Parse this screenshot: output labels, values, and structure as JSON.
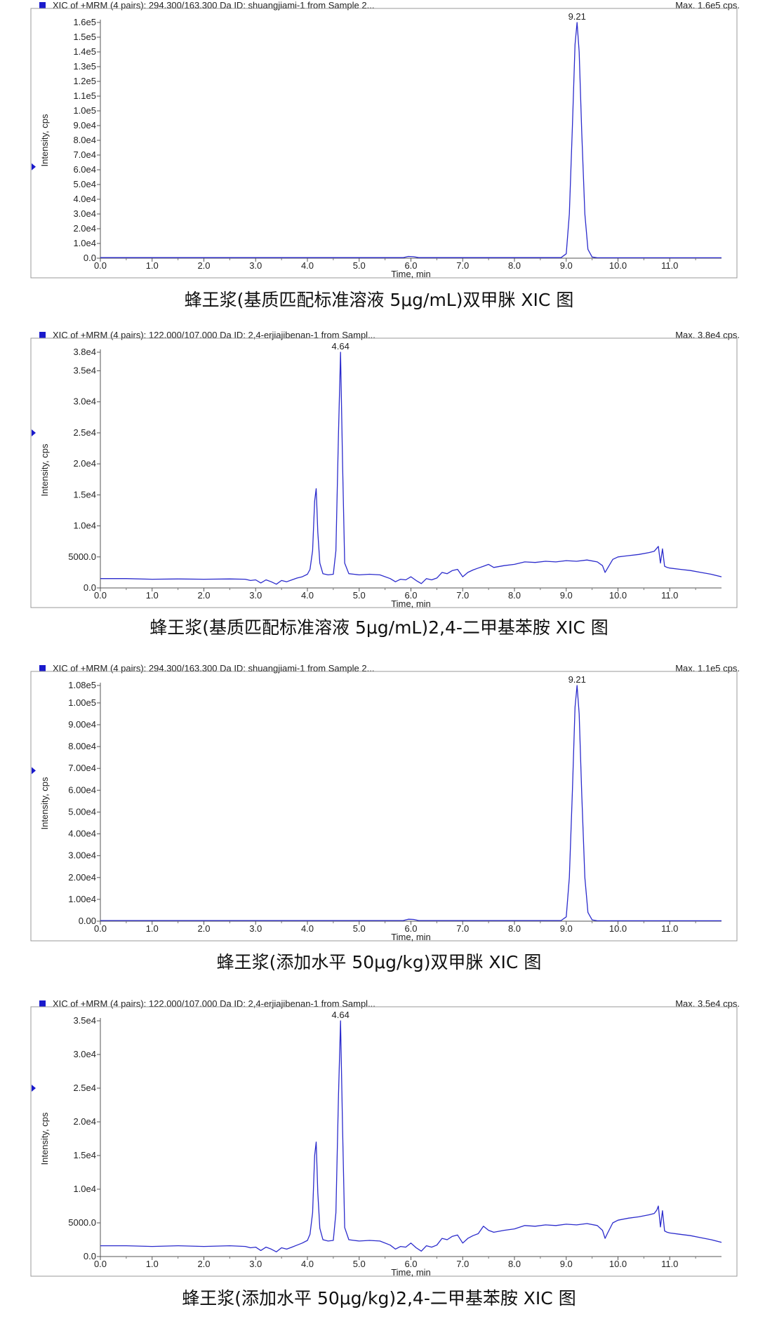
{
  "chart_data": [
    {
      "type": "line",
      "header_left": "XIC of +MRM (4 pairs): 294.300/163.300 Da ID: shuangjiami-1 from Sample 2...",
      "header_right": "Max. 1.6e5 cps.",
      "caption": "蜂王浆(基质匹配标准溶液 5μg/mL)双甲脒 XIC 图",
      "xlabel": "Time, min",
      "ylabel": "Intensity, cps",
      "xlim": [
        0,
        12
      ],
      "ylim": [
        0,
        160000
      ],
      "x_ticks": [
        "0.0",
        "1.0",
        "2.0",
        "3.0",
        "4.0",
        "5.0",
        "6.0",
        "7.0",
        "8.0",
        "9.0",
        "10.0",
        "11.0"
      ],
      "y_ticks": [
        "0.0",
        "1.0e4",
        "2.0e4",
        "3.0e4",
        "4.0e4",
        "5.0e4",
        "6.0e4",
        "7.0e4",
        "8.0e4",
        "9.0e4",
        "1.0e5",
        "1.1e5",
        "1.2e5",
        "1.3e5",
        "1.4e5",
        "1.5e5",
        "1.6e5"
      ],
      "y_tick_values": [
        0,
        10000,
        20000,
        30000,
        40000,
        50000,
        60000,
        70000,
        80000,
        90000,
        100000,
        110000,
        120000,
        130000,
        140000,
        150000,
        160000
      ],
      "marker_y": 62000,
      "peak_labels": [
        {
          "x": 9.21,
          "y": 160000,
          "label": "9.21"
        }
      ],
      "series": [
        {
          "color": "#2b2bcc",
          "x": [
            0.0,
            5.85,
            5.95,
            6.05,
            6.15,
            8.9,
            9.0,
            9.06,
            9.12,
            9.17,
            9.21,
            9.25,
            9.3,
            9.36,
            9.42,
            9.5,
            9.6,
            12.0
          ],
          "y": [
            400,
            400,
            1200,
            1000,
            400,
            400,
            3000,
            30000,
            90000,
            145000,
            160000,
            140000,
            85000,
            30000,
            6000,
            800,
            300,
            300
          ]
        }
      ]
    },
    {
      "type": "line",
      "header_left": "XIC of +MRM (4 pairs): 122.000/107.000 Da ID: 2,4-erjiajibenan-1 from Sampl...",
      "header_right": "Max. 3.8e4 cps.",
      "caption": "蜂王浆(基质匹配标准溶液 5μg/mL)2,4-二甲基苯胺 XIC 图",
      "xlabel": "Time, min",
      "ylabel": "Intensity, cps",
      "xlim": [
        0,
        12
      ],
      "ylim": [
        0,
        38000
      ],
      "x_ticks": [
        "0.0",
        "1.0",
        "2.0",
        "3.0",
        "4.0",
        "5.0",
        "6.0",
        "7.0",
        "8.0",
        "9.0",
        "10.0",
        "11.0"
      ],
      "y_ticks": [
        "0.0",
        "5000.0",
        "1.0e4",
        "1.5e4",
        "2.0e4",
        "2.5e4",
        "3.0e4",
        "3.5e4",
        "3.8e4"
      ],
      "y_tick_values": [
        0,
        5000,
        10000,
        15000,
        20000,
        25000,
        30000,
        35000,
        38000
      ],
      "marker_y": 25000,
      "peak_labels": [
        {
          "x": 4.64,
          "y": 38000,
          "label": "4.64"
        }
      ],
      "series": [
        {
          "color": "#2b2bcc",
          "x": [
            0.0,
            0.5,
            1.0,
            1.5,
            2.0,
            2.5,
            2.8,
            2.9,
            3.0,
            3.1,
            3.2,
            3.3,
            3.4,
            3.5,
            3.6,
            3.7,
            3.8,
            3.9,
            4.0,
            4.05,
            4.1,
            4.14,
            4.17,
            4.2,
            4.24,
            4.3,
            4.4,
            4.5,
            4.55,
            4.6,
            4.64,
            4.68,
            4.72,
            4.8,
            4.9,
            5.0,
            5.2,
            5.4,
            5.6,
            5.7,
            5.8,
            5.9,
            6.0,
            6.1,
            6.2,
            6.3,
            6.4,
            6.5,
            6.6,
            6.7,
            6.8,
            6.9,
            7.0,
            7.1,
            7.2,
            7.3,
            7.4,
            7.5,
            7.6,
            7.8,
            8.0,
            8.2,
            8.4,
            8.6,
            8.8,
            9.0,
            9.2,
            9.4,
            9.6,
            9.7,
            9.75,
            9.8,
            9.9,
            10.0,
            10.2,
            10.4,
            10.6,
            10.7,
            10.75,
            10.78,
            10.82,
            10.86,
            10.9,
            10.95,
            11.0,
            11.2,
            11.4,
            11.6,
            11.8,
            12.0
          ],
          "y": [
            1500,
            1500,
            1400,
            1450,
            1400,
            1450,
            1400,
            1200,
            1300,
            800,
            1300,
            1000,
            600,
            1200,
            1000,
            1300,
            1600,
            1800,
            2200,
            3000,
            6000,
            14000,
            16000,
            9000,
            4000,
            2300,
            2100,
            2200,
            6000,
            25000,
            38000,
            20000,
            4000,
            2300,
            2200,
            2100,
            2200,
            2100,
            1500,
            1000,
            1400,
            1300,
            1800,
            1200,
            700,
            1500,
            1300,
            1600,
            2500,
            2300,
            2800,
            3000,
            1800,
            2500,
            2900,
            3200,
            3500,
            3800,
            3300,
            3600,
            3800,
            4200,
            4100,
            4300,
            4200,
            4400,
            4300,
            4500,
            4200,
            3600,
            2500,
            3200,
            4600,
            5000,
            5200,
            5400,
            5700,
            5900,
            6400,
            6700,
            4000,
            6300,
            3500,
            3300,
            3200,
            3000,
            2800,
            2500,
            2200,
            1800
          ]
        }
      ]
    },
    {
      "type": "line",
      "header_left": "XIC of +MRM (4 pairs): 294.300/163.300 Da ID: shuangjiami-1 from Sample 2...",
      "header_right": "Max. 1.1e5 cps.",
      "caption": "蜂王浆(添加水平 50μg/kg)双甲脒 XIC 图",
      "xlabel": "Time, min",
      "ylabel": "Intensity, cps",
      "xlim": [
        0,
        12
      ],
      "ylim": [
        0,
        108000
      ],
      "x_ticks": [
        "0.0",
        "1.0",
        "2.0",
        "3.0",
        "4.0",
        "5.0",
        "6.0",
        "7.0",
        "8.0",
        "9.0",
        "10.0",
        "11.0"
      ],
      "y_ticks": [
        "0.00",
        "1.00e4",
        "2.00e4",
        "3.00e4",
        "4.00e4",
        "5.00e4",
        "6.00e4",
        "7.00e4",
        "8.00e4",
        "9.00e4",
        "1.00e5",
        "1.08e5"
      ],
      "y_tick_values": [
        0,
        10000,
        20000,
        30000,
        40000,
        50000,
        60000,
        70000,
        80000,
        90000,
        100000,
        108000
      ],
      "marker_y": 69000,
      "peak_labels": [
        {
          "x": 9.21,
          "y": 108000,
          "label": "9.21"
        }
      ],
      "series": [
        {
          "color": "#2b2bcc",
          "x": [
            0.0,
            5.85,
            5.95,
            6.05,
            6.15,
            8.9,
            9.0,
            9.06,
            9.12,
            9.17,
            9.21,
            9.25,
            9.3,
            9.36,
            9.42,
            9.5,
            9.6,
            12.0
          ],
          "y": [
            300,
            300,
            900,
            800,
            300,
            300,
            2000,
            20000,
            60000,
            98000,
            108000,
            95000,
            58000,
            20000,
            4000,
            600,
            200,
            200
          ]
        }
      ]
    },
    {
      "type": "line",
      "header_left": "XIC of +MRM (4 pairs): 122.000/107.000 Da ID: 2,4-erjiajibenan-1 from Sampl...",
      "header_right": "Max. 3.5e4 cps.",
      "caption": "蜂王浆(添加水平 50μg/kg)2,4-二甲基苯胺 XIC 图",
      "xlabel": "Time, min",
      "ylabel": "Intensity, cps",
      "xlim": [
        0,
        12
      ],
      "ylim": [
        0,
        35000
      ],
      "x_ticks": [
        "0.0",
        "1.0",
        "2.0",
        "3.0",
        "4.0",
        "5.0",
        "6.0",
        "7.0",
        "8.0",
        "9.0",
        "10.0",
        "11.0"
      ],
      "y_ticks": [
        "0.0",
        "5000.0",
        "1.0e4",
        "1.5e4",
        "2.0e4",
        "2.5e4",
        "3.0e4",
        "3.5e4"
      ],
      "y_tick_values": [
        0,
        5000,
        10000,
        15000,
        20000,
        25000,
        30000,
        35000
      ],
      "marker_y": 25000,
      "peak_labels": [
        {
          "x": 4.64,
          "y": 35000,
          "label": "4.64"
        }
      ],
      "series": [
        {
          "color": "#2b2bcc",
          "x": [
            0.0,
            0.5,
            1.0,
            1.5,
            2.0,
            2.5,
            2.8,
            2.9,
            3.0,
            3.1,
            3.2,
            3.3,
            3.4,
            3.5,
            3.6,
            3.7,
            3.8,
            3.9,
            4.0,
            4.05,
            4.1,
            4.14,
            4.17,
            4.2,
            4.24,
            4.3,
            4.4,
            4.5,
            4.55,
            4.6,
            4.64,
            4.68,
            4.72,
            4.8,
            4.9,
            5.0,
            5.2,
            5.4,
            5.6,
            5.7,
            5.8,
            5.9,
            6.0,
            6.1,
            6.2,
            6.3,
            6.4,
            6.5,
            6.6,
            6.7,
            6.8,
            6.9,
            7.0,
            7.1,
            7.2,
            7.3,
            7.4,
            7.5,
            7.6,
            7.8,
            8.0,
            8.2,
            8.4,
            8.6,
            8.8,
            9.0,
            9.2,
            9.4,
            9.6,
            9.7,
            9.75,
            9.8,
            9.9,
            10.0,
            10.2,
            10.4,
            10.6,
            10.7,
            10.75,
            10.78,
            10.82,
            10.86,
            10.9,
            10.95,
            11.0,
            11.2,
            11.4,
            11.6,
            11.8,
            12.0
          ],
          "y": [
            1600,
            1600,
            1500,
            1600,
            1500,
            1600,
            1500,
            1300,
            1400,
            900,
            1400,
            1100,
            700,
            1300,
            1100,
            1400,
            1700,
            2000,
            2400,
            3300,
            6500,
            15000,
            17000,
            9500,
            4200,
            2500,
            2300,
            2400,
            6500,
            24000,
            35000,
            19000,
            4300,
            2500,
            2400,
            2300,
            2400,
            2300,
            1700,
            1100,
            1500,
            1400,
            2000,
            1300,
            800,
            1600,
            1400,
            1700,
            2700,
            2500,
            3000,
            3200,
            2000,
            2700,
            3100,
            3400,
            4500,
            3900,
            3600,
            3900,
            4100,
            4600,
            4500,
            4700,
            4600,
            4800,
            4700,
            4900,
            4600,
            3900,
            2700,
            3500,
            5000,
            5400,
            5700,
            5900,
            6200,
            6400,
            6900,
            7500,
            4400,
            6800,
            3800,
            3600,
            3500,
            3300,
            3100,
            2800,
            2500,
            2100
          ]
        }
      ]
    }
  ]
}
